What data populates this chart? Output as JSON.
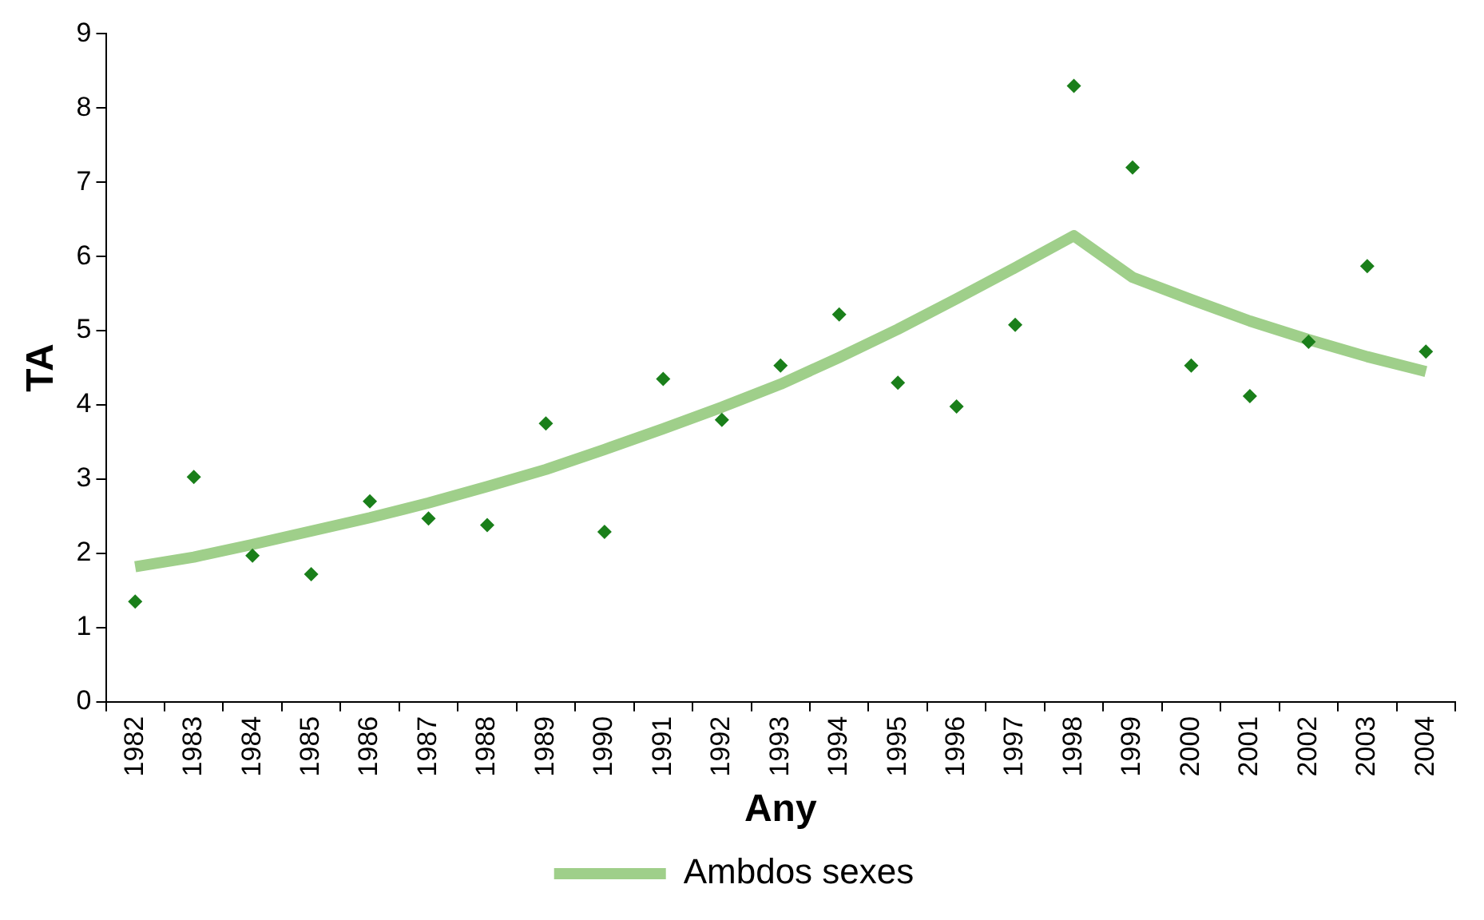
{
  "chart_data": {
    "type": "scatter",
    "xlabel": "Any",
    "ylabel": "TA",
    "categories": [
      "1982",
      "1983",
      "1984",
      "1985",
      "1986",
      "1987",
      "1988",
      "1989",
      "1990",
      "1991",
      "1992",
      "1993",
      "1994",
      "1995",
      "1996",
      "1997",
      "1998",
      "1999",
      "2000",
      "2001",
      "2002",
      "2003",
      "2004"
    ],
    "series": [
      {
        "color": "#1a7f1a",
        "marker": "diamond",
        "values": [
          1.35,
          3.03,
          1.97,
          1.72,
          2.7,
          2.47,
          2.38,
          3.75,
          2.29,
          4.35,
          3.8,
          4.53,
          5.22,
          4.3,
          3.98,
          5.08,
          8.3,
          7.2,
          4.53,
          4.12,
          4.85,
          5.87,
          4.72
        ]
      },
      {
        "type": "line",
        "name": "Ambdos sexes",
        "color": "#9fcf8a",
        "marker": "none",
        "values": [
          1.82,
          1.95,
          2.12,
          2.3,
          2.48,
          2.68,
          2.9,
          3.13,
          3.4,
          3.68,
          3.97,
          4.28,
          4.64,
          5.02,
          5.43,
          5.85,
          6.28,
          5.72,
          5.42,
          5.13,
          4.88,
          4.65,
          4.45
        ]
      }
    ],
    "ylim": [
      0,
      9
    ],
    "yticks": [
      0,
      1,
      2,
      3,
      4,
      5,
      6,
      7,
      8,
      9
    ],
    "grid": false,
    "legend": "bottom"
  }
}
